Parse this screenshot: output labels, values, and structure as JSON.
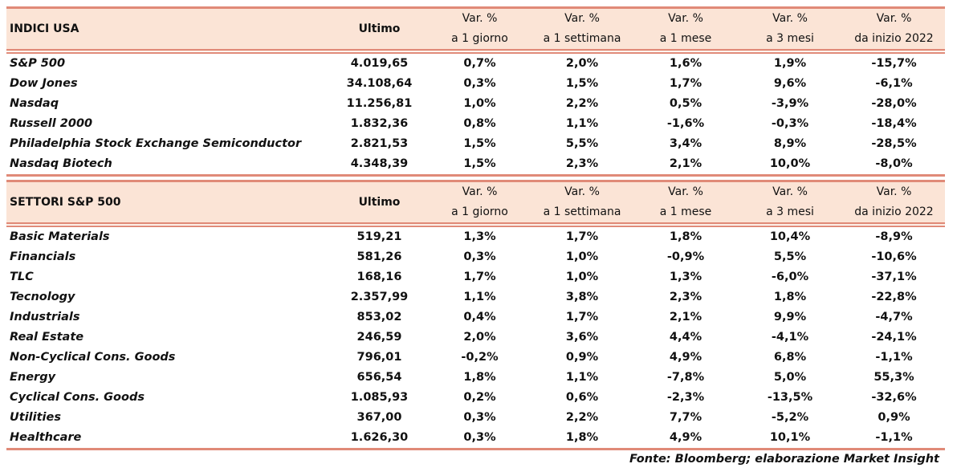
{
  "accent_color": "#e08a78",
  "header_bg": "#fbe4d6",
  "column_headers": [
    {
      "line1": "Var. %",
      "line2": "a 1 giorno"
    },
    {
      "line1": "Var. %",
      "line2": "a 1 settimana"
    },
    {
      "line1": "Var. %",
      "line2": "a 1 mese"
    },
    {
      "line1": "Var. %",
      "line2": "a 3 mesi"
    },
    {
      "line1": "Var. %",
      "line2": "da inizio 2022"
    }
  ],
  "last_label": "Ultimo",
  "tables": [
    {
      "title": "INDICI USA",
      "rows": [
        {
          "name": "S&P 500",
          "last": "4.019,65",
          "values": [
            "0,7%",
            "2,0%",
            "1,6%",
            "1,9%",
            "-15,7%"
          ]
        },
        {
          "name": "Dow Jones",
          "last": "34.108,64",
          "values": [
            "0,3%",
            "1,5%",
            "1,7%",
            "9,6%",
            "-6,1%"
          ]
        },
        {
          "name": "Nasdaq",
          "last": "11.256,81",
          "values": [
            "1,0%",
            "2,2%",
            "0,5%",
            "-3,9%",
            "-28,0%"
          ]
        },
        {
          "name": "Russell 2000",
          "last": "1.832,36",
          "values": [
            "0,8%",
            "1,1%",
            "-1,6%",
            "-0,3%",
            "-18,4%"
          ]
        },
        {
          "name": "Philadelphia Stock Exchange Semiconductor",
          "last": "2.821,53",
          "values": [
            "1,5%",
            "5,5%",
            "3,4%",
            "8,9%",
            "-28,5%"
          ]
        },
        {
          "name": "Nasdaq Biotech",
          "last": "4.348,39",
          "values": [
            "1,5%",
            "2,3%",
            "2,1%",
            "10,0%",
            "-8,0%"
          ]
        }
      ]
    },
    {
      "title": "SETTORI S&P 500",
      "rows": [
        {
          "name": "Basic Materials",
          "last": "519,21",
          "values": [
            "1,3%",
            "1,7%",
            "1,8%",
            "10,4%",
            "-8,9%"
          ]
        },
        {
          "name": "Financials",
          "last": "581,26",
          "values": [
            "0,3%",
            "1,0%",
            "-0,9%",
            "5,5%",
            "-10,6%"
          ]
        },
        {
          "name": "TLC",
          "last": "168,16",
          "values": [
            "1,7%",
            "1,0%",
            "1,3%",
            "-6,0%",
            "-37,1%"
          ]
        },
        {
          "name": "Tecnology",
          "last": "2.357,99",
          "values": [
            "1,1%",
            "3,8%",
            "2,3%",
            "1,8%",
            "-22,8%"
          ]
        },
        {
          "name": "Industrials",
          "last": "853,02",
          "values": [
            "0,4%",
            "1,7%",
            "2,1%",
            "9,9%",
            "-4,7%"
          ]
        },
        {
          "name": "Real Estate",
          "last": "246,59",
          "values": [
            "2,0%",
            "3,6%",
            "4,4%",
            "-4,1%",
            "-24,1%"
          ]
        },
        {
          "name": "Non-Cyclical Cons. Goods",
          "last": "796,01",
          "values": [
            "-0,2%",
            "0,9%",
            "4,9%",
            "6,8%",
            "-1,1%"
          ]
        },
        {
          "name": "Energy",
          "last": "656,54",
          "values": [
            "1,8%",
            "1,1%",
            "-7,8%",
            "5,0%",
            "55,3%"
          ]
        },
        {
          "name": "Cyclical Cons. Goods",
          "last": "1.085,93",
          "values": [
            "0,2%",
            "0,6%",
            "-2,3%",
            "-13,5%",
            "-32,6%"
          ]
        },
        {
          "name": "Utilities",
          "last": "367,00",
          "values": [
            "0,3%",
            "2,2%",
            "7,7%",
            "-5,2%",
            "0,9%"
          ]
        },
        {
          "name": "Healthcare",
          "last": "1.626,30",
          "values": [
            "0,3%",
            "1,8%",
            "4,9%",
            "10,1%",
            "-1,1%"
          ]
        }
      ]
    }
  ],
  "footnote": "Fonte: Bloomberg; elaborazione Market Insight"
}
